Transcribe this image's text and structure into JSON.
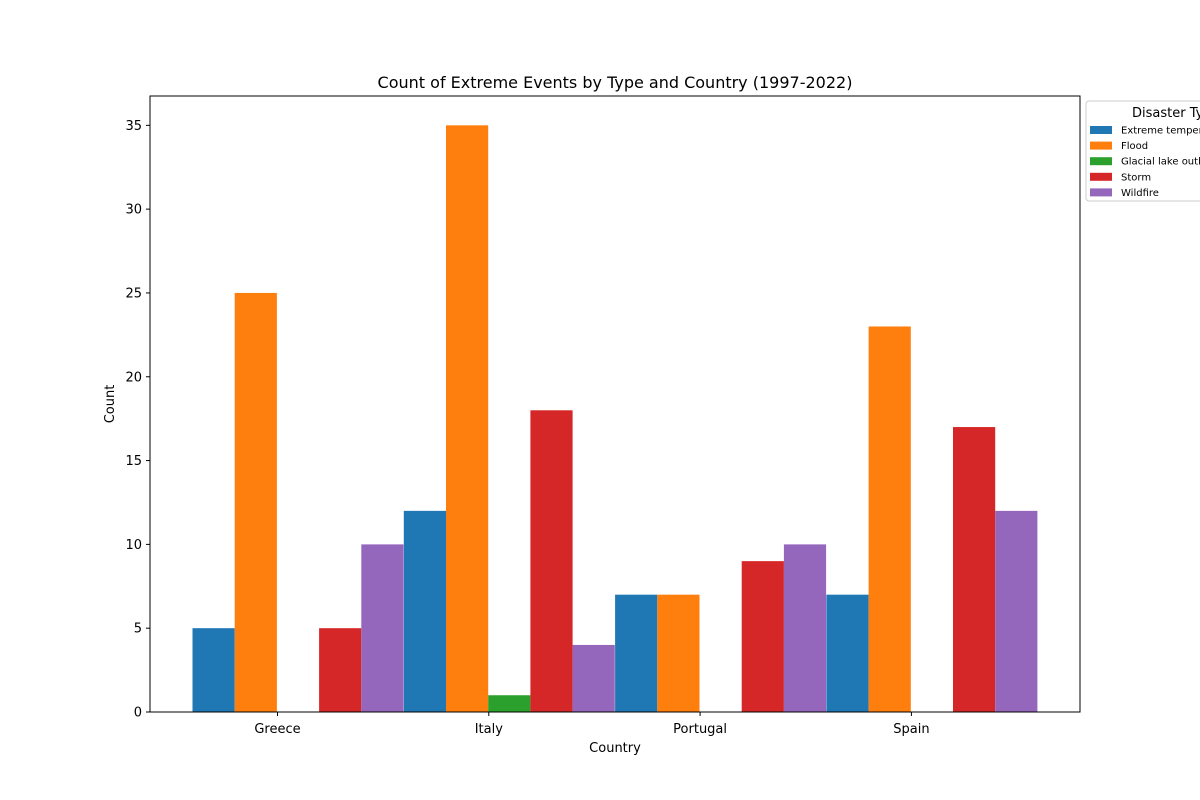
{
  "chart_data": {
    "type": "bar",
    "title": "Count of Extreme Events by Type and Country (1997-2022)",
    "xlabel": "Country",
    "ylabel": "Count",
    "categories": [
      "Greece",
      "Italy",
      "Portugal",
      "Spain"
    ],
    "ylim": [
      0,
      36.75
    ],
    "yticks": [
      0,
      5,
      10,
      15,
      20,
      25,
      30,
      35
    ],
    "grid": false,
    "legend": {
      "title": "Disaster Type",
      "placement": "outside-right-top"
    },
    "series": [
      {
        "name": "Extreme temperature",
        "color": "#1f77b4",
        "values": [
          5,
          12,
          7,
          7
        ]
      },
      {
        "name": "Flood",
        "color": "#ff7f0e",
        "values": [
          25,
          35,
          7,
          23
        ]
      },
      {
        "name": "Glacial lake outburst flood",
        "color": "#2ca02c",
        "values": [
          0,
          1,
          0,
          0
        ]
      },
      {
        "name": "Storm",
        "color": "#d62728",
        "values": [
          5,
          18,
          9,
          17
        ]
      },
      {
        "name": "Wildfire",
        "color": "#9467bd",
        "values": [
          10,
          4,
          10,
          12
        ]
      }
    ]
  }
}
